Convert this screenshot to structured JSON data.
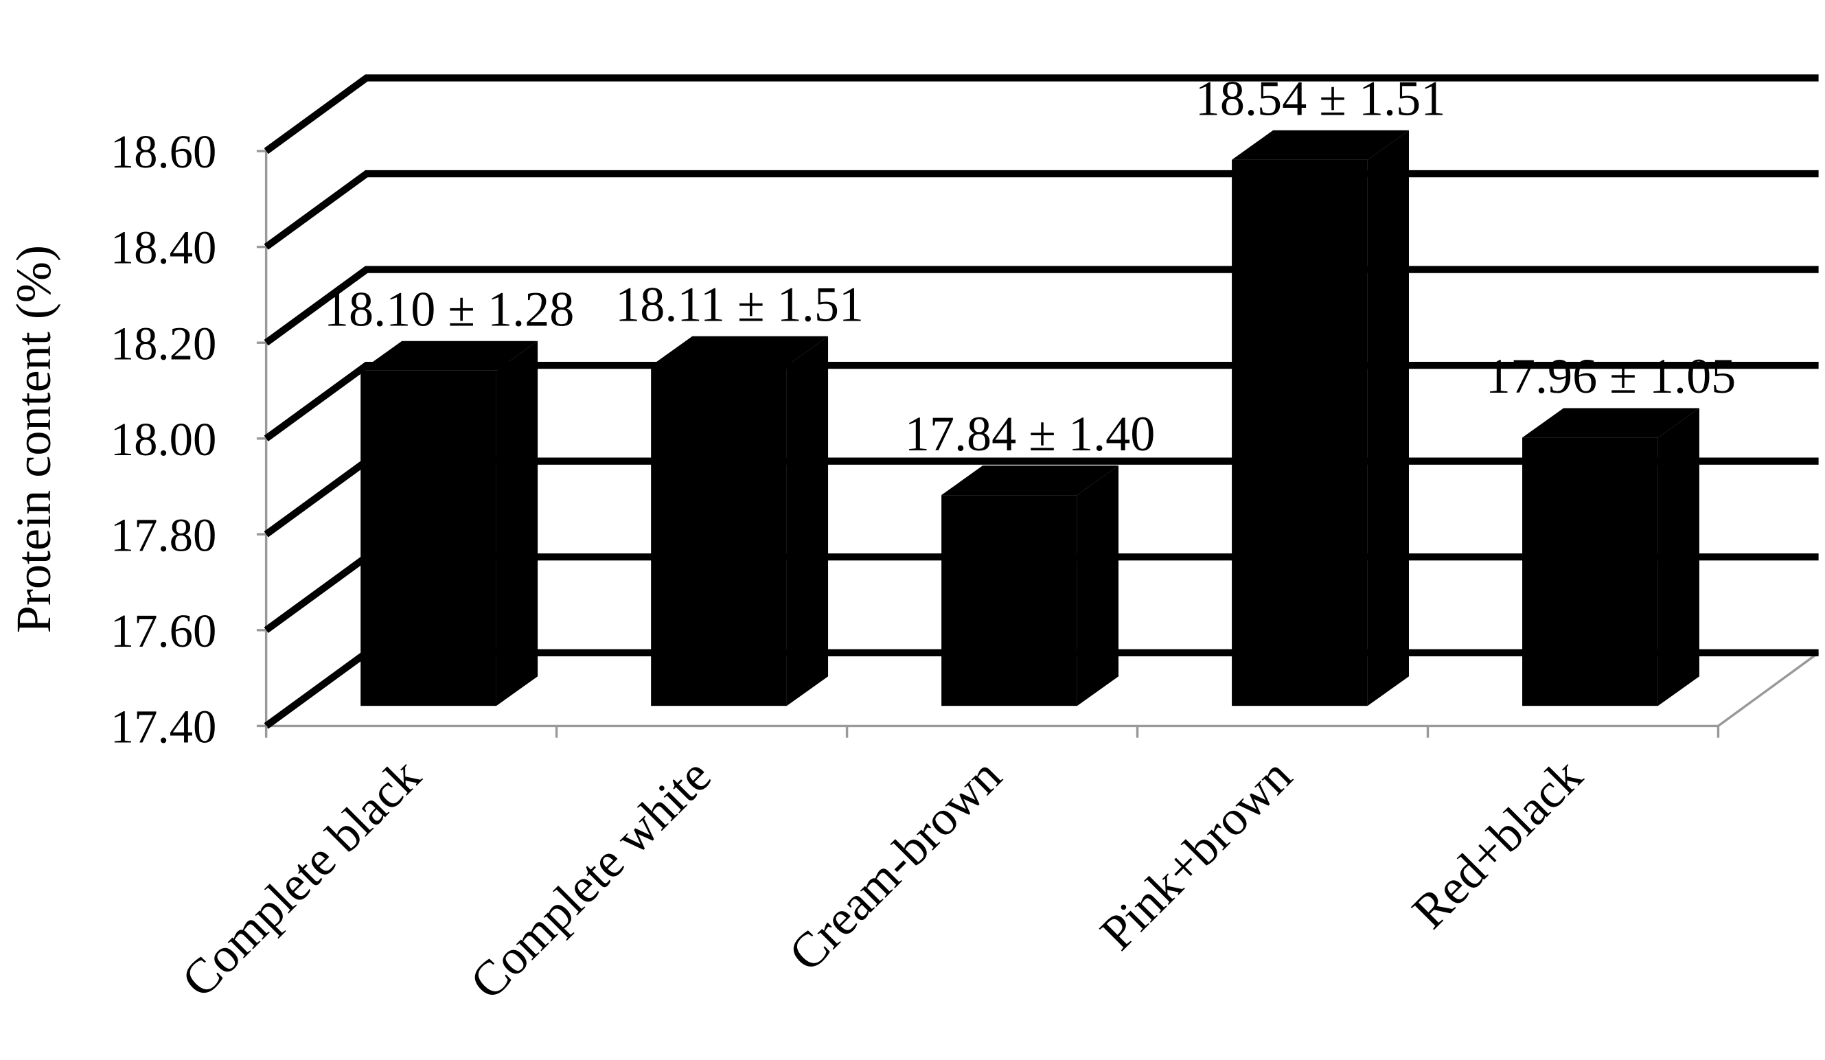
{
  "chart_data": {
    "type": "bar3d",
    "y_label": "Protein content (%)",
    "categories": [
      "Complete black",
      "Complete white",
      "Cream-brown",
      "Pink+brown",
      "Red+black"
    ],
    "values": [
      18.1,
      18.11,
      17.84,
      18.54,
      17.96
    ],
    "errors": [
      1.28,
      1.51,
      1.4,
      1.51,
      1.05
    ],
    "value_labels": [
      "18.10 ± 1.28",
      "18.11 ± 1.51",
      "17.84 ± 1.40",
      "18.54 ± 1.51",
      "17.96 ± 1.05"
    ],
    "color": "#000000",
    "ylim": [
      17.4,
      18.6
    ],
    "yticks": [
      {
        "value": 17.4,
        "label": "17.40"
      },
      {
        "value": 17.6,
        "label": "17.60"
      },
      {
        "value": 17.8,
        "label": "17.80"
      },
      {
        "value": 18.0,
        "label": "18.00"
      },
      {
        "value": 18.2,
        "label": "18.20"
      },
      {
        "value": 18.4,
        "label": "18.40"
      },
      {
        "value": 18.6,
        "label": "18.60"
      }
    ],
    "grid": true
  }
}
